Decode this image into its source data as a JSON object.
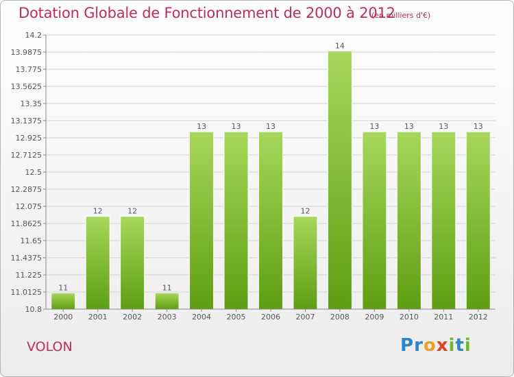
{
  "header": {
    "title": "Dotation Globale de Fonctionnement de 2000 à 2012",
    "unit": "(en milliers d'€)"
  },
  "footer": {
    "commune": "VOLON",
    "logo": [
      "P",
      "r",
      "o",
      "x",
      "i",
      "t",
      "i"
    ]
  },
  "colors": {
    "title": "#c8285a",
    "bar_light": "#a6d85a",
    "bar_dark": "#5e9e12",
    "grid": "#d0d0d0"
  },
  "chart_data": {
    "type": "bar",
    "title": "Dotation Globale de Fonctionnement de 2000 à 2012",
    "subtitle": "(en milliers d'€)",
    "categories": [
      "2000",
      "2001",
      "2002",
      "2003",
      "2004",
      "2005",
      "2006",
      "2007",
      "2008",
      "2009",
      "2010",
      "2011",
      "2012"
    ],
    "values": [
      11.0,
      11.95,
      11.95,
      11.0,
      13.0,
      13.0,
      13.0,
      11.95,
      14.0,
      13.0,
      13.0,
      13.0,
      13.0
    ],
    "data_labels": [
      "11",
      "12",
      "12",
      "11",
      "13",
      "13",
      "13",
      "12",
      "14",
      "13",
      "13",
      "13",
      "13"
    ],
    "yticks": [
      "10.8",
      "11.0125",
      "11.225",
      "11.4375",
      "11.65",
      "11.8625",
      "12.075",
      "12.2875",
      "12.5",
      "12.7125",
      "12.925",
      "13.1375",
      "13.35",
      "13.5625",
      "13.775",
      "13.9875",
      "14.2"
    ],
    "ylim": [
      10.8,
      14.2
    ],
    "grid": true,
    "xlabel": "",
    "ylabel": ""
  }
}
